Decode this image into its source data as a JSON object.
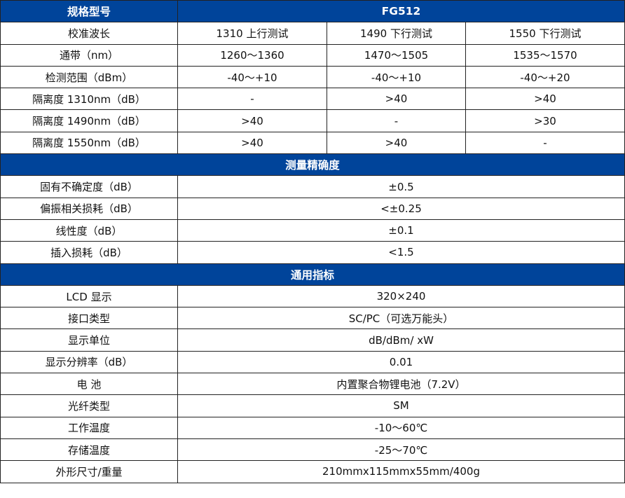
{
  "header": {
    "label": "规格型号",
    "model": "FG512"
  },
  "specs": [
    {
      "label": "校准波长",
      "values": [
        "1310 上行测试",
        "1490 下行测试",
        "1550 下行测试"
      ]
    },
    {
      "label": "通带（nm）",
      "values": [
        "1260～1360",
        "1470～1505",
        "1535～1570"
      ]
    },
    {
      "label": "检测范围（dBm）",
      "values": [
        "-40～+10",
        "-40～+10",
        "-40～+20"
      ]
    },
    {
      "label": "隔离度 1310nm（dB）",
      "values": [
        "-",
        ">40",
        ">40"
      ]
    },
    {
      "label": "隔离度 1490nm（dB）",
      "values": [
        ">40",
        "-",
        ">30"
      ]
    },
    {
      "label": "隔离度 1550nm（dB）",
      "values": [
        ">40",
        ">40",
        "-"
      ]
    }
  ],
  "accuracy": {
    "title": "测量精确度",
    "rows": [
      {
        "label": "固有不确定度（dB）",
        "value": "±0.5"
      },
      {
        "label": "偏振相关损耗（dB）",
        "value": "<±0.25"
      },
      {
        "label": "线性度（dB）",
        "value": "±0.1"
      },
      {
        "label": "插入损耗（dB）",
        "value": "<1.5"
      }
    ]
  },
  "general": {
    "title": "通用指标",
    "rows": [
      {
        "label": "LCD 显示",
        "value": "320×240"
      },
      {
        "label": "接口类型",
        "value": "SC/PC（可选万能头）"
      },
      {
        "label": "显示单位",
        "value": "dB/dBm/ xW"
      },
      {
        "label": "显示分辨率（dB）",
        "value": "0.01"
      },
      {
        "label": "电  池",
        "value": "内置聚合物锂电池（7.2V）"
      },
      {
        "label": "光纤类型",
        "value": "SM"
      },
      {
        "label": "工作温度",
        "value": "-10～60℃"
      },
      {
        "label": "存储温度",
        "value": "-25～70℃"
      },
      {
        "label": "外形尺寸/重量",
        "value": "210mmx115mmx55mm/400g"
      }
    ]
  },
  "colors": {
    "section_bg": "#00449a",
    "section_text": "#ffffff"
  }
}
